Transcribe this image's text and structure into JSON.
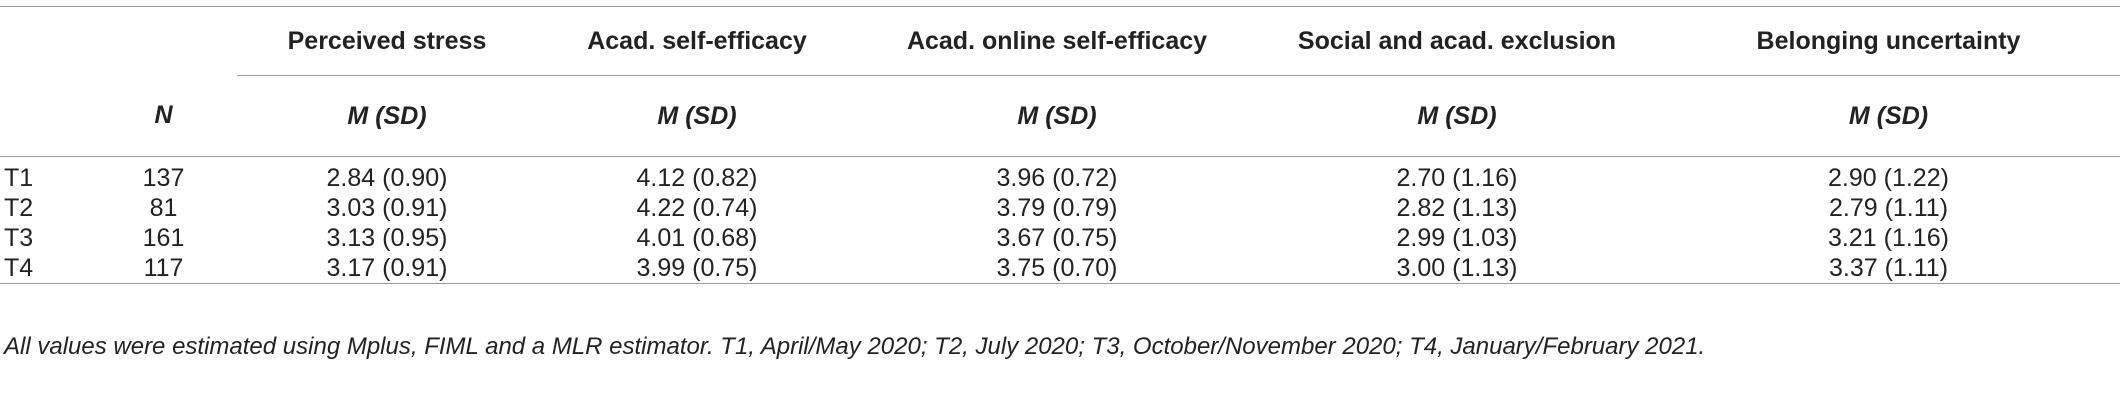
{
  "table": {
    "columns": [
      "Perceived stress",
      "Acad. self-efficacy",
      "Acad. online self-efficacy",
      "Social and acad. exclusion",
      "Belonging uncertainty"
    ],
    "n_label": "N",
    "stat_label": "M (SD)",
    "rows": [
      [
        "T1",
        "137",
        "2.84 (0.90)",
        "4.12 (0.82)",
        "3.96 (0.72)",
        "2.70 (1.16)",
        "2.90 (1.22)"
      ],
      [
        "T2",
        "81",
        "3.03 (0.91)",
        "4.22 (0.74)",
        "3.79 (0.79)",
        "2.82 (1.13)",
        "2.79 (1.11)"
      ],
      [
        "T3",
        "161",
        "3.13 (0.95)",
        "4.01 (0.68)",
        "3.67 (0.75)",
        "2.99 (1.03)",
        "3.21 (1.16)"
      ],
      [
        "T4",
        "117",
        "3.17 (0.91)",
        "3.99 (0.75)",
        "3.75 (0.70)",
        "3.00 (1.13)",
        "3.37 (1.11)"
      ]
    ]
  },
  "footnote": "All values were estimated using Mplus, FIML and a MLR estimator. T1, April/May 2020; T2, July 2020; T3, October/November 2020; T4, January/February 2021."
}
